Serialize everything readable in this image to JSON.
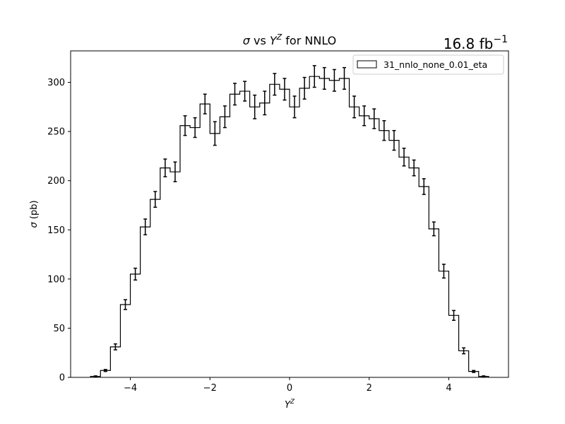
{
  "chart_data": {
    "type": "histogram",
    "title": "σ vs Y^Z for NNLO",
    "title_parts": {
      "sigma": "σ",
      "vs": " vs ",
      "y": "Y",
      "sup": "Z",
      "rest": " for NNLO"
    },
    "luminosity_label": {
      "value": "16.8 fb",
      "sup": "−1"
    },
    "xlabel": {
      "base": "Y",
      "sup": "Z"
    },
    "ylabel": {
      "sigma": "σ",
      "rest": " (pb)"
    },
    "xlim": [
      -5.5,
      5.5
    ],
    "ylim": [
      0,
      332
    ],
    "xticks": [
      -4,
      -2,
      0,
      2,
      4
    ],
    "xtick_labels": [
      "−4",
      "−2",
      "0",
      "2",
      "4"
    ],
    "yticks": [
      0,
      50,
      100,
      150,
      200,
      250,
      300
    ],
    "ytick_labels": [
      "0",
      "50",
      "100",
      "150",
      "200",
      "250",
      "300"
    ],
    "legend": {
      "label": "31_nnlo_none_0.01_eta",
      "placement": "upper right"
    },
    "grid": false,
    "bin_edges": [
      -5.0,
      -4.75,
      -4.5,
      -4.25,
      -4.0,
      -3.75,
      -3.5,
      -3.25,
      -3.0,
      -2.75,
      -2.5,
      -2.25,
      -2.0,
      -1.75,
      -1.5,
      -1.25,
      -1.0,
      -0.75,
      -0.5,
      -0.25,
      0.0,
      0.25,
      0.5,
      0.75,
      1.0,
      1.25,
      1.5,
      1.75,
      2.0,
      2.25,
      2.5,
      2.75,
      3.0,
      3.25,
      3.5,
      3.75,
      4.0,
      4.25,
      4.5,
      4.75,
      5.0
    ],
    "series": [
      {
        "values": [
          1,
          7,
          31,
          74,
          105,
          153,
          181,
          213,
          209,
          256,
          254,
          278,
          248,
          265,
          288,
          291,
          275,
          279,
          298,
          293,
          275,
          294,
          306,
          304,
          302,
          304,
          275,
          266,
          263,
          251,
          241,
          224,
          213,
          194,
          151,
          108,
          63,
          27,
          6,
          1
        ],
        "errors": [
          0.5,
          1,
          3,
          5,
          6,
          8,
          8,
          9,
          10,
          10,
          10,
          10,
          12,
          11,
          11,
          10,
          12,
          12,
          11,
          11,
          11,
          11,
          11,
          11,
          11,
          11,
          11,
          10,
          10,
          10,
          10,
          9,
          8,
          8,
          7,
          7,
          5,
          3,
          1,
          0.5
        ]
      }
    ]
  }
}
